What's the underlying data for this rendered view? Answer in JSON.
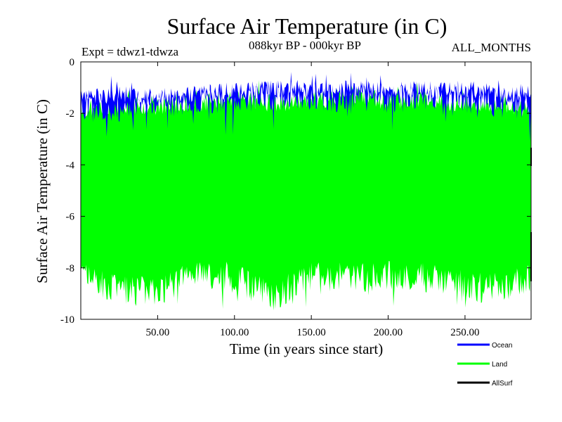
{
  "chart_data": {
    "type": "line",
    "title": "Surface Air Temperature (in C)",
    "subtitle": "088kyr BP - 000kyr BP",
    "experiment": "Expt = tdwz1-tdwza",
    "period": "ALL_MONTHS",
    "xlabel": "Time (in years since start)",
    "ylabel": "Surface Air Temperature (in C)",
    "xlim": [
      0,
      293
    ],
    "ylim": [
      -10,
      0
    ],
    "x_ticks": [
      50,
      100,
      150,
      200,
      250
    ],
    "x_tick_labels": [
      "50.00",
      "100.00",
      "150.00",
      "200.00",
      "250.00"
    ],
    "y_ticks": [
      0,
      -2,
      -4,
      -6,
      -8,
      -10
    ],
    "y_tick_labels": [
      "0",
      "-2",
      "-4",
      "-6",
      "-8",
      "-10"
    ],
    "grid": false,
    "legend_position": "bottom-right",
    "series": [
      {
        "name": "Land",
        "color": "#00ff00",
        "style": "band",
        "envelope": {
          "x": [
            0,
            25,
            50,
            75,
            100,
            125,
            150,
            175,
            200,
            225,
            250,
            275,
            293
          ],
          "upper": [
            -1.5,
            -1.3,
            -1.4,
            -1.3,
            -1.0,
            -1.3,
            -1.2,
            -0.9,
            -1.2,
            -1.1,
            -1.3,
            -1.3,
            -1.5
          ],
          "lower": [
            -8.9,
            -9.4,
            -9.6,
            -8.8,
            -9.0,
            -9.7,
            -8.9,
            -9.0,
            -8.9,
            -9.0,
            -9.3,
            -9.4,
            -9.0
          ]
        }
      },
      {
        "name": "Ocean",
        "color": "#0000ff",
        "style": "band",
        "envelope": {
          "x": [
            0,
            25,
            50,
            75,
            100,
            125,
            150,
            175,
            200,
            225,
            250,
            275,
            293
          ],
          "upper": [
            -1.0,
            -0.9,
            -1.1,
            -0.9,
            -0.8,
            -0.7,
            -0.8,
            -0.7,
            -0.8,
            -0.8,
            -0.7,
            -0.9,
            -0.9
          ],
          "lower": [
            -2.4,
            -2.4,
            -2.2,
            -2.0,
            -2.0,
            -1.9,
            -1.9,
            -2.0,
            -2.0,
            -1.9,
            -2.0,
            -2.2,
            -2.3
          ]
        }
      },
      {
        "name": "AllSurf",
        "color": "#000000",
        "style": "line",
        "values": []
      }
    ]
  }
}
